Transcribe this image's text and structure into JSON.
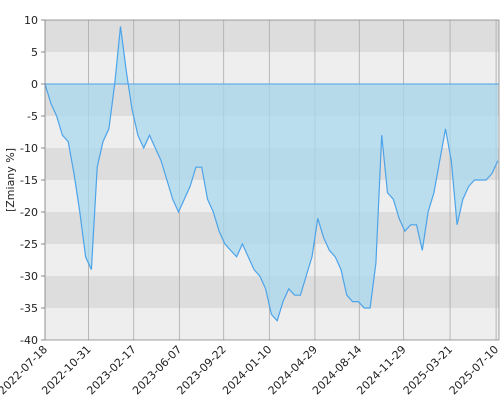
{
  "chart_data": {
    "type": "area",
    "ylabel": "[Zmiany %]",
    "x": [
      "2022-07-18",
      "2022-08-01",
      "2022-08-15",
      "2022-08-29",
      "2022-09-12",
      "2022-09-26",
      "2022-10-10",
      "2022-10-24",
      "2022-11-07",
      "2022-11-21",
      "2022-12-05",
      "2022-12-19",
      "2023-01-02",
      "2023-01-16",
      "2023-01-30",
      "2023-02-13",
      "2023-02-27",
      "2023-03-13",
      "2023-03-27",
      "2023-04-10",
      "2023-04-24",
      "2023-05-08",
      "2023-05-22",
      "2023-06-05",
      "2023-06-19",
      "2023-07-03",
      "2023-07-17",
      "2023-07-31",
      "2023-08-14",
      "2023-08-28",
      "2023-09-11",
      "2023-09-25",
      "2023-10-09",
      "2023-10-23",
      "2023-11-06",
      "2023-11-20",
      "2023-12-04",
      "2023-12-18",
      "2024-01-01",
      "2024-01-15",
      "2024-01-29",
      "2024-02-12",
      "2024-02-26",
      "2024-03-11",
      "2024-03-25",
      "2024-04-08",
      "2024-04-22",
      "2024-05-06",
      "2024-05-20",
      "2024-06-03",
      "2024-06-17",
      "2024-07-01",
      "2024-07-15",
      "2024-07-29",
      "2024-08-12",
      "2024-08-26",
      "2024-09-09",
      "2024-09-23",
      "2024-10-07",
      "2024-10-21",
      "2024-11-04",
      "2024-11-18",
      "2024-12-02",
      "2024-12-16",
      "2024-12-30",
      "2025-01-13",
      "2025-01-27",
      "2025-02-10",
      "2025-02-24",
      "2025-03-10",
      "2025-03-24",
      "2025-04-07",
      "2025-04-21",
      "2025-05-05",
      "2025-05-19",
      "2025-06-02",
      "2025-06-16",
      "2025-06-30",
      "2025-07-14"
    ],
    "series": [
      {
        "color": "#4da3e8",
        "fill": "#a8d8ee",
        "values": [
          0,
          -3,
          -5,
          -8,
          -9,
          -14,
          -20,
          -27,
          -29,
          -13,
          -9,
          -7,
          0,
          9,
          2,
          -4,
          -8,
          -10,
          -8,
          -10,
          -12,
          -15,
          -18,
          -20,
          -18,
          -16,
          -13,
          -13,
          -18,
          -20,
          -23,
          -25,
          -26,
          -27,
          -25,
          -27,
          -29,
          -30,
          -32,
          -36,
          -37,
          -34,
          -32,
          -33,
          -33,
          -30,
          -27,
          -21,
          -24,
          -26,
          -27,
          -29,
          -33,
          -34,
          -34,
          -35,
          -35,
          -28,
          -8,
          -17,
          -18,
          -21,
          -23,
          -22,
          -22,
          -26,
          -20,
          -17,
          -12,
          -7,
          -12,
          -22,
          -18,
          -16,
          -15,
          -15,
          -15,
          -14,
          -12
        ]
      }
    ],
    "xlim": [
      "2022-07-18",
      "2025-07-17"
    ],
    "xticks": [
      "2022-07-18",
      "2022-10-31",
      "2023-02-17",
      "2023-06-07",
      "2023-09-22",
      "2024-01-10",
      "2024-04-29",
      "2024-08-14",
      "2024-11-29",
      "2025-03-21",
      "2025-07-10"
    ],
    "ylim": [
      -40,
      10
    ],
    "yticks": [
      -40,
      -35,
      -30,
      -25,
      -20,
      -15,
      -10,
      -5,
      0,
      5,
      10
    ],
    "bands": [
      "#eeeeee",
      "#dddddd"
    ]
  }
}
